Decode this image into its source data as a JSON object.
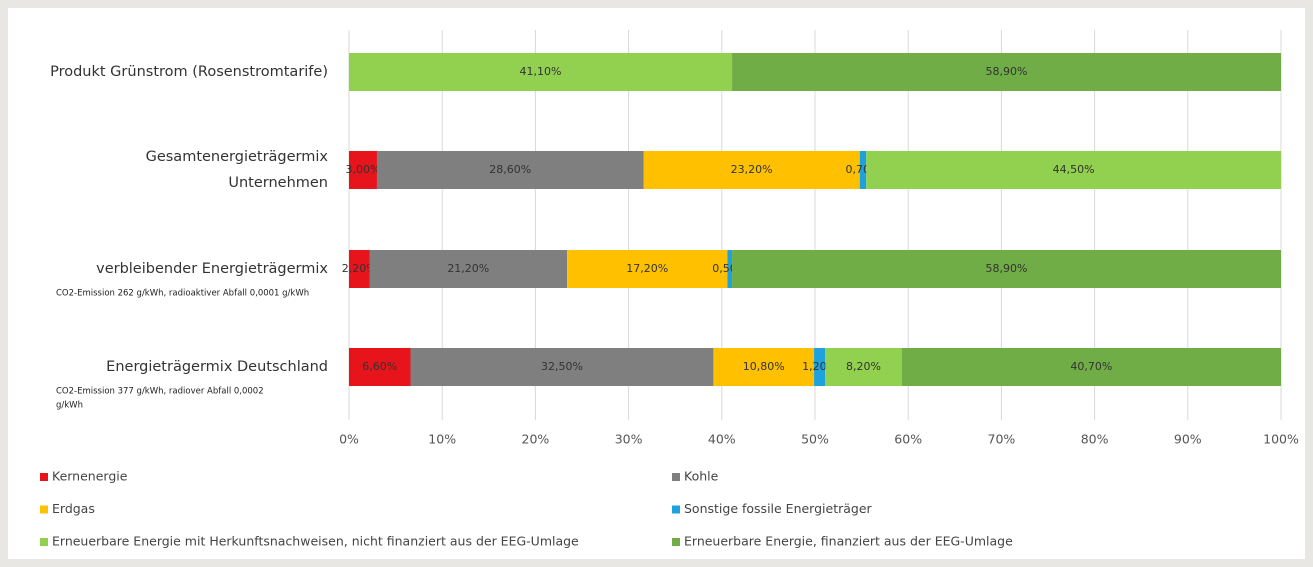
{
  "chart_data": {
    "type": "stacked_barh",
    "categories": [
      [
        "Produkt Grünstrom (Rosenstromtarife)"
      ],
      [
        "Gesamtenergieträgermix",
        "Unternehmen"
      ],
      [
        "verbleibender Energieträgermix"
      ],
      [
        "Energieträgermix Deutschland"
      ]
    ],
    "category_notes": [
      null,
      null,
      [
        "CO2-Emission 262 g/kWh, radioaktiver Abfall 0,0001 g/kWh"
      ],
      [
        "CO2-Emission 377 g/kWh, radiover Abfall 0,0002",
        "g/kWh"
      ]
    ],
    "series": [
      {
        "name": "Kernenergie",
        "color": "#e8141b",
        "values": [
          null,
          3.0,
          2.2,
          6.6
        ],
        "value_labels": [
          null,
          "3,00%",
          "2,20%",
          "6,60%"
        ]
      },
      {
        "name": "Kohle",
        "color": "#7f7f7f",
        "values": [
          null,
          28.6,
          21.2,
          32.5
        ],
        "value_labels": [
          null,
          "28,60%",
          "21,20%",
          "32,50%"
        ]
      },
      {
        "name": "Erdgas",
        "color": "#ffc000",
        "values": [
          null,
          23.2,
          17.2,
          10.8
        ],
        "value_labels": [
          null,
          "23,20%",
          "17,20%",
          "10,80%"
        ]
      },
      {
        "name": "Sonstige fossile Energieträger",
        "color": "#1fa2dc",
        "values": [
          null,
          0.7,
          0.5,
          1.2
        ],
        "value_labels": [
          null,
          "0,70%",
          "0,50%",
          "1,20%"
        ]
      },
      {
        "name": "Erneuerbare Energie mit Herkunftsnachweisen, nicht finanziert aus der EEG-Umlage",
        "color": "#92d050",
        "values": [
          41.1,
          44.5,
          null,
          8.2
        ],
        "value_labels": [
          "41,10%",
          "44,50%",
          null,
          "8,20%"
        ]
      },
      {
        "name": "Erneuerbare Energie,  finanziert aus der EEG-Umlage",
        "color": "#70ad47",
        "values": [
          58.9,
          null,
          58.9,
          40.7
        ],
        "value_labels": [
          "58,90%",
          null,
          "58,90%",
          "40,70%"
        ]
      }
    ],
    "xlim": [
      0,
      100
    ],
    "xticks": [
      {
        "value": 0,
        "label": "0%"
      },
      {
        "value": 10,
        "label": "10%"
      },
      {
        "value": 20,
        "label": "20%"
      },
      {
        "value": 30,
        "label": "30%"
      },
      {
        "value": 40,
        "label": "40%"
      },
      {
        "value": 50,
        "label": "50%"
      },
      {
        "value": 60,
        "label": "60%"
      },
      {
        "value": 70,
        "label": "70%"
      },
      {
        "value": 80,
        "label": "80%"
      },
      {
        "value": 90,
        "label": "90%"
      },
      {
        "value": 100,
        "label": "100%"
      }
    ],
    "grid": true
  }
}
